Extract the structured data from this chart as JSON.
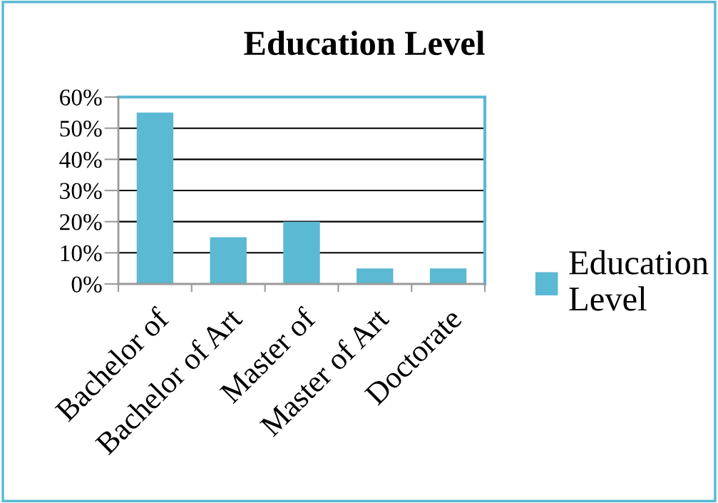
{
  "chart_data": {
    "type": "bar",
    "title": "Education Level",
    "categories": [
      "Bachelor of",
      "Bachelor of Art",
      "Master of",
      "Master of Art",
      "Doctorate"
    ],
    "series": [
      {
        "name": "Education Level",
        "color": "#5bb9d3",
        "values": [
          55,
          15,
          20,
          5,
          5
        ]
      }
    ],
    "ylim": [
      0,
      60
    ],
    "yticks": [
      {
        "value": 0,
        "label": "0%"
      },
      {
        "value": 10,
        "label": "10%"
      },
      {
        "value": 20,
        "label": "20%"
      },
      {
        "value": 30,
        "label": "30%"
      },
      {
        "value": 40,
        "label": "40%"
      },
      {
        "value": 50,
        "label": "50%"
      },
      {
        "value": 60,
        "label": "60%"
      }
    ],
    "grid": "y",
    "legend": "right"
  }
}
